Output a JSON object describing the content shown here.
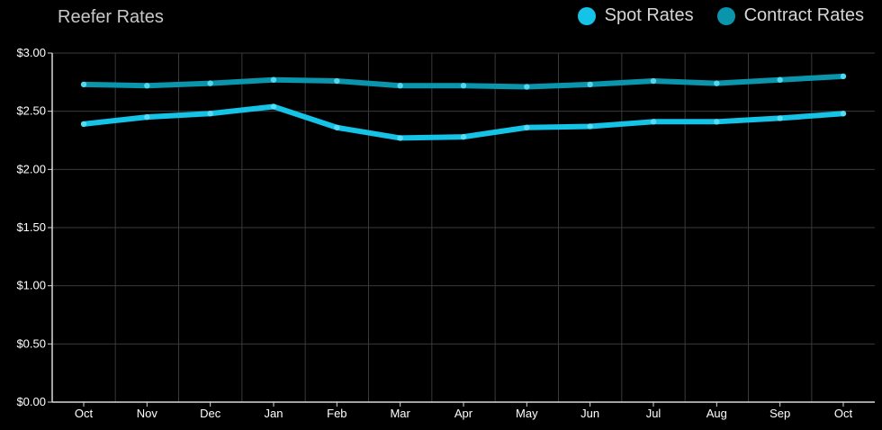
{
  "chart_data": {
    "type": "line",
    "title": "Reefer Rates",
    "categories": [
      "Oct",
      "Nov",
      "Dec",
      "Jan",
      "Feb",
      "Mar",
      "Apr",
      "May",
      "Jun",
      "Jul",
      "Aug",
      "Sep",
      "Oct"
    ],
    "series": [
      {
        "name": "Spot Rates",
        "color": "#14c3e6",
        "values": [
          2.39,
          2.45,
          2.48,
          2.54,
          2.36,
          2.27,
          2.28,
          2.36,
          2.37,
          2.41,
          2.41,
          2.44,
          2.48
        ]
      },
      {
        "name": "Contract Rates",
        "color": "#0a95ad",
        "values": [
          2.73,
          2.72,
          2.74,
          2.77,
          2.76,
          2.72,
          2.72,
          2.71,
          2.73,
          2.76,
          2.74,
          2.77,
          2.8
        ]
      }
    ],
    "ylim": [
      0,
      3
    ],
    "y_ticks": [
      "$0.00",
      "$0.50",
      "$1.00",
      "$1.50",
      "$2.00",
      "$2.50",
      "$3.00"
    ],
    "y_tick_values": [
      0,
      0.5,
      1.0,
      1.5,
      2.0,
      2.5,
      3.0
    ],
    "xlabel": "",
    "ylabel": "",
    "grid": true,
    "legend_position": "top-right"
  },
  "colors": {
    "background": "#000000",
    "grid": "#3a3a3a",
    "axis": "#d9d9d9",
    "spot": "#14c3e6",
    "contract": "#0a95ad"
  }
}
